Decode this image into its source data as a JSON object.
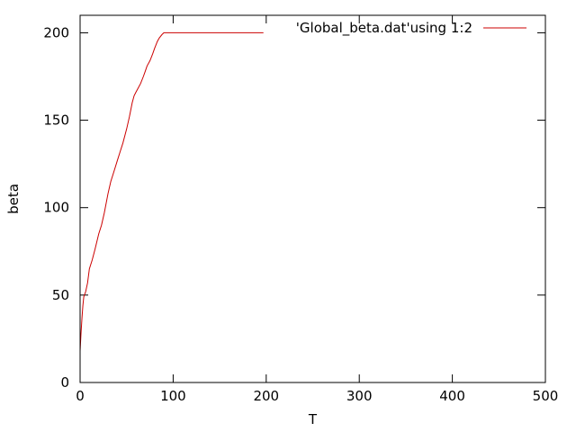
{
  "chart_data": {
    "type": "line",
    "title": "",
    "xlabel": "T",
    "ylabel": "beta",
    "xlim": [
      0,
      500
    ],
    "ylim": [
      0,
      210
    ],
    "x_ticks": [
      0,
      100,
      200,
      300,
      400,
      500
    ],
    "y_ticks": [
      0,
      50,
      100,
      150,
      200
    ],
    "grid": false,
    "legend": "top-right",
    "series": [
      {
        "name": "'Global_beta.dat'using 1:2",
        "color": "#cc0000",
        "x": [
          0,
          1,
          2,
          3,
          4,
          6,
          8,
          10,
          13,
          16,
          20,
          23,
          26,
          30,
          33,
          36,
          40,
          43,
          46,
          50,
          53,
          56,
          58,
          60,
          62,
          65,
          68,
          70,
          72,
          75,
          78,
          80,
          83,
          85,
          88,
          90,
          93,
          96,
          100,
          110,
          130,
          150,
          170,
          190,
          197
        ],
        "y": [
          18,
          28,
          37,
          44,
          49,
          52,
          57,
          65,
          70,
          76,
          85,
          90,
          97,
          108,
          115,
          120,
          127,
          132,
          137,
          145,
          152,
          160,
          164,
          166,
          168,
          171,
          175,
          178,
          181,
          184,
          188,
          191,
          195,
          197,
          199,
          200,
          200,
          200,
          200,
          200,
          200,
          200,
          200,
          200,
          200
        ]
      }
    ]
  }
}
